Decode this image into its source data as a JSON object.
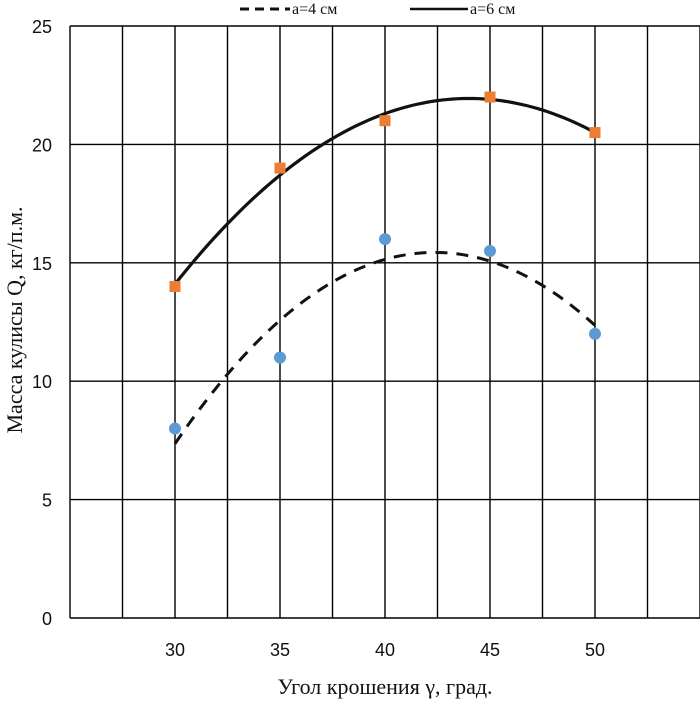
{
  "chart_data": {
    "type": "scatter",
    "xlabel": "Угол крошения γ, град.",
    "ylabel": "Масса кулисы Q, кг/п.м.",
    "xlim": [
      25,
      55
    ],
    "ylim": [
      0,
      25
    ],
    "x_ticks": [
      "30",
      "35",
      "40",
      "45",
      "50"
    ],
    "y_ticks": [
      "0",
      "5",
      "10",
      "15",
      "20",
      "25"
    ],
    "grid": true,
    "legend_position": "top",
    "series": [
      {
        "name": "a=4 см",
        "x": [
          30,
          35,
          40,
          45,
          50
        ],
        "y": [
          8,
          11,
          16,
          15.5,
          12
        ],
        "marker": "circle",
        "marker_color": "#5b9bd5",
        "trendline": "polynomial-2",
        "line_style": "dashed",
        "line_color": "#111111"
      },
      {
        "name": "a=6 см",
        "x": [
          30,
          35,
          40,
          45,
          50
        ],
        "y": [
          14,
          19,
          21,
          22,
          20.5
        ],
        "marker": "square",
        "marker_color": "#ed7d31",
        "trendline": "polynomial-2",
        "line_style": "solid",
        "line_color": "#111111"
      }
    ]
  }
}
